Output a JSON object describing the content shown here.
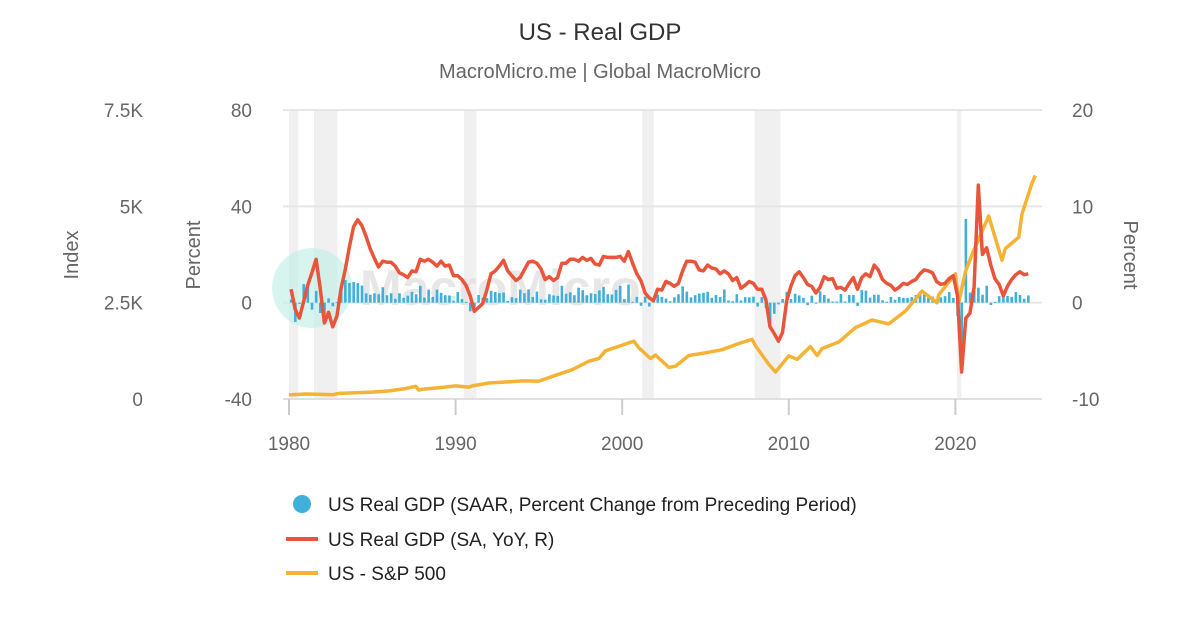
{
  "chart_data": {
    "type": "combo",
    "title": "US - Real GDP",
    "subtitle": "MacroMicro.me | Global MacroMicro",
    "watermark": "MacroMicro",
    "grid": true,
    "legend_position": "bottom",
    "x_ticks": [
      "1980",
      "1990",
      "2000",
      "2010",
      "2020"
    ],
    "x_range": [
      1980,
      2025.2
    ],
    "axes": {
      "index": {
        "label": "Index",
        "range": [
          0,
          7500
        ],
        "ticks": [
          "0",
          "2.5K",
          "5K",
          "7.5K"
        ],
        "side": "left-outer"
      },
      "percent_left": {
        "label": "Percent",
        "range": [
          -40,
          80
        ],
        "ticks": [
          "-40",
          "0",
          "40",
          "80"
        ],
        "side": "left-inner"
      },
      "percent_right": {
        "label": "Percent",
        "range": [
          -10,
          20
        ],
        "ticks": [
          "-10",
          "0",
          "10",
          "20"
        ],
        "side": "right"
      }
    },
    "recessions": [
      [
        1980.0,
        1980.55
      ],
      [
        1981.5,
        1982.9
      ],
      [
        1990.5,
        1991.25
      ],
      [
        2001.2,
        2001.9
      ],
      [
        2007.95,
        2009.5
      ],
      [
        2020.1,
        2020.35
      ]
    ],
    "series": [
      {
        "name": "US Real GDP (SAAR, Percent Change from Preceding Period)",
        "type": "bar",
        "axis": "percent_left",
        "color": "#3eb0da",
        "start": 1980,
        "frequency": "quarterly",
        "values": [
          1.3,
          -8.0,
          -0.5,
          7.7,
          8.1,
          -2.9,
          4.9,
          -4.3,
          -6.1,
          1.8,
          -1.5,
          0.2,
          5.4,
          9.4,
          8.2,
          8.6,
          8.1,
          7.1,
          3.9,
          3.3,
          3.9,
          3.5,
          6.4,
          3.1,
          3.9,
          1.6,
          3.9,
          2.0,
          2.9,
          4.5,
          3.5,
          7.0,
          2.1,
          5.4,
          2.4,
          5.4,
          4.1,
          3.1,
          3.0,
          0.8,
          4.4,
          1.5,
          0.3,
          -3.6,
          -1.9,
          3.2,
          2.0,
          1.9,
          4.9,
          4.4,
          4.0,
          4.2,
          0.7,
          2.3,
          1.9,
          5.4,
          3.9,
          5.5,
          2.4,
          4.6,
          1.4,
          1.2,
          3.5,
          3.0,
          2.8,
          7.0,
          3.7,
          4.3,
          3.1,
          6.2,
          5.2,
          3.1,
          3.9,
          3.6,
          5.1,
          6.6,
          3.5,
          3.4,
          5.3,
          7.0,
          1.5,
          7.5,
          0.4,
          2.4,
          -1.3,
          2.5,
          -1.6,
          1.1,
          3.4,
          2.4,
          1.7,
          0.6,
          2.2,
          3.5,
          6.8,
          4.6,
          2.2,
          3.1,
          3.8,
          4.1,
          4.5,
          2.0,
          3.2,
          2.3,
          5.5,
          0.9,
          0.6,
          3.5,
          0.9,
          2.3,
          2.2,
          2.5,
          -1.6,
          2.3,
          -2.1,
          -8.5,
          -4.6,
          -0.7,
          1.5,
          4.5,
          1.5,
          3.7,
          3.0,
          2.0,
          -1.0,
          2.9,
          -0.1,
          4.7,
          3.2,
          1.7,
          0.5,
          0.5,
          3.6,
          0.5,
          3.2,
          3.2,
          -1.4,
          5.2,
          5.0,
          2.1,
          3.3,
          3.3,
          1.0,
          0.4,
          2.4,
          1.2,
          2.4,
          2.0,
          2.0,
          2.3,
          3.2,
          4.6,
          3.3,
          2.1,
          2.5,
          0.7,
          2.2,
          2.7,
          4.4,
          2.0,
          -5.5,
          -28.0,
          34.8,
          4.2,
          5.2,
          6.2,
          3.3,
          7.0,
          -1.0,
          0.3,
          2.7,
          3.4,
          2.8,
          2.4,
          4.4,
          3.2,
          1.6,
          3.0
        ]
      },
      {
        "name": "US Real GDP (SA, YoY, R)",
        "type": "line",
        "axis": "percent_right",
        "color": "#e8553a",
        "start": 1980,
        "frequency": "quarterly",
        "values": [
          1.4,
          -0.7,
          -1.6,
          0.1,
          1.8,
          3.1,
          4.5,
          1.5,
          -2.1,
          -1.0,
          -2.5,
          -1.4,
          1.5,
          3.4,
          5.8,
          7.9,
          8.6,
          8.0,
          6.9,
          5.6,
          4.6,
          3.7,
          4.3,
          4.2,
          4.2,
          3.8,
          3.1,
          2.9,
          2.6,
          3.3,
          3.2,
          4.5,
          4.3,
          4.5,
          4.2,
          3.8,
          4.3,
          3.8,
          3.9,
          2.8,
          2.8,
          2.4,
          1.8,
          0.7,
          -0.9,
          -0.5,
          -0.1,
          1.3,
          3.0,
          3.3,
          3.8,
          4.4,
          3.3,
          2.8,
          2.3,
          2.6,
          3.4,
          4.2,
          4.3,
          4.1,
          3.5,
          2.4,
          2.7,
          2.3,
          2.6,
          4.1,
          4.1,
          4.5,
          4.5,
          4.3,
          4.7,
          4.4,
          4.6,
          4.0,
          3.9,
          4.8,
          4.7,
          4.7,
          4.7,
          4.8,
          4.3,
          5.3,
          4.1,
          3.0,
          2.3,
          1.0,
          0.5,
          0.2,
          1.4,
          1.3,
          2.2,
          2.0,
          1.7,
          2.0,
          3.3,
          4.3,
          4.3,
          4.2,
          3.4,
          3.3,
          3.9,
          3.6,
          3.5,
          3.0,
          3.3,
          3.0,
          2.3,
          2.6,
          1.5,
          1.8,
          2.2,
          2.0,
          1.4,
          1.4,
          0.3,
          -2.5,
          -3.2,
          -4.0,
          -3.1,
          0.2,
          1.7,
          2.8,
          3.2,
          2.6,
          1.9,
          1.7,
          1.0,
          1.6,
          2.7,
          2.4,
          2.5,
          1.5,
          1.6,
          1.3,
          2.0,
          2.6,
          1.4,
          2.6,
          3.0,
          2.7,
          3.9,
          3.4,
          2.4,
          2.0,
          1.8,
          1.3,
          1.6,
          2.0,
          1.9,
          2.2,
          2.4,
          3.0,
          3.4,
          3.3,
          3.1,
          2.2,
          1.9,
          2.0,
          2.5,
          2.8,
          0.7,
          -7.2,
          -1.6,
          -1.1,
          1.6,
          12.2,
          5.0,
          5.7,
          3.9,
          2.5,
          1.9,
          0.7,
          1.7,
          2.4,
          2.9,
          3.2,
          2.9,
          3.0
        ]
      },
      {
        "name": "US - S&P 500",
        "type": "line",
        "axis": "index",
        "color": "#f5b335",
        "points": [
          [
            1980,
            107
          ],
          [
            1981,
            130
          ],
          [
            1982,
            120
          ],
          [
            1982.6,
            108
          ],
          [
            1983,
            145
          ],
          [
            1984,
            163
          ],
          [
            1985,
            180
          ],
          [
            1986,
            210
          ],
          [
            1987,
            270
          ],
          [
            1987.6,
            330
          ],
          [
            1987.8,
            230
          ],
          [
            1988,
            255
          ],
          [
            1989,
            290
          ],
          [
            1990,
            340
          ],
          [
            1990.8,
            310
          ],
          [
            1991,
            340
          ],
          [
            1992,
            415
          ],
          [
            1993,
            440
          ],
          [
            1994,
            470
          ],
          [
            1995,
            465
          ],
          [
            1996,
            615
          ],
          [
            1997,
            760
          ],
          [
            1998,
            980
          ],
          [
            1998.6,
            1050
          ],
          [
            1999,
            1250
          ],
          [
            2000,
            1400
          ],
          [
            2000.7,
            1500
          ],
          [
            2001,
            1330
          ],
          [
            2001.7,
            1050
          ],
          [
            2002,
            1140
          ],
          [
            2002.8,
            820
          ],
          [
            2003.2,
            850
          ],
          [
            2004,
            1130
          ],
          [
            2005,
            1200
          ],
          [
            2006,
            1280
          ],
          [
            2007,
            1440
          ],
          [
            2007.8,
            1550
          ],
          [
            2008,
            1380
          ],
          [
            2008.8,
            900
          ],
          [
            2009.2,
            700
          ],
          [
            2010,
            1120
          ],
          [
            2010.5,
            1030
          ],
          [
            2011.3,
            1360
          ],
          [
            2011.7,
            1130
          ],
          [
            2012,
            1310
          ],
          [
            2013,
            1480
          ],
          [
            2014,
            1850
          ],
          [
            2015,
            2050
          ],
          [
            2016,
            1950
          ],
          [
            2017,
            2280
          ],
          [
            2018,
            2800
          ],
          [
            2018.9,
            2500
          ],
          [
            2019,
            2700
          ],
          [
            2020,
            3250
          ],
          [
            2020.2,
            2500
          ],
          [
            2020.6,
            3300
          ],
          [
            2021,
            3750
          ],
          [
            2022,
            4750
          ],
          [
            2022.8,
            3600
          ],
          [
            2023,
            3900
          ],
          [
            2023.8,
            4200
          ],
          [
            2024,
            4800
          ],
          [
            2024.6,
            5600
          ],
          [
            2024.8,
            5800
          ]
        ]
      }
    ]
  }
}
